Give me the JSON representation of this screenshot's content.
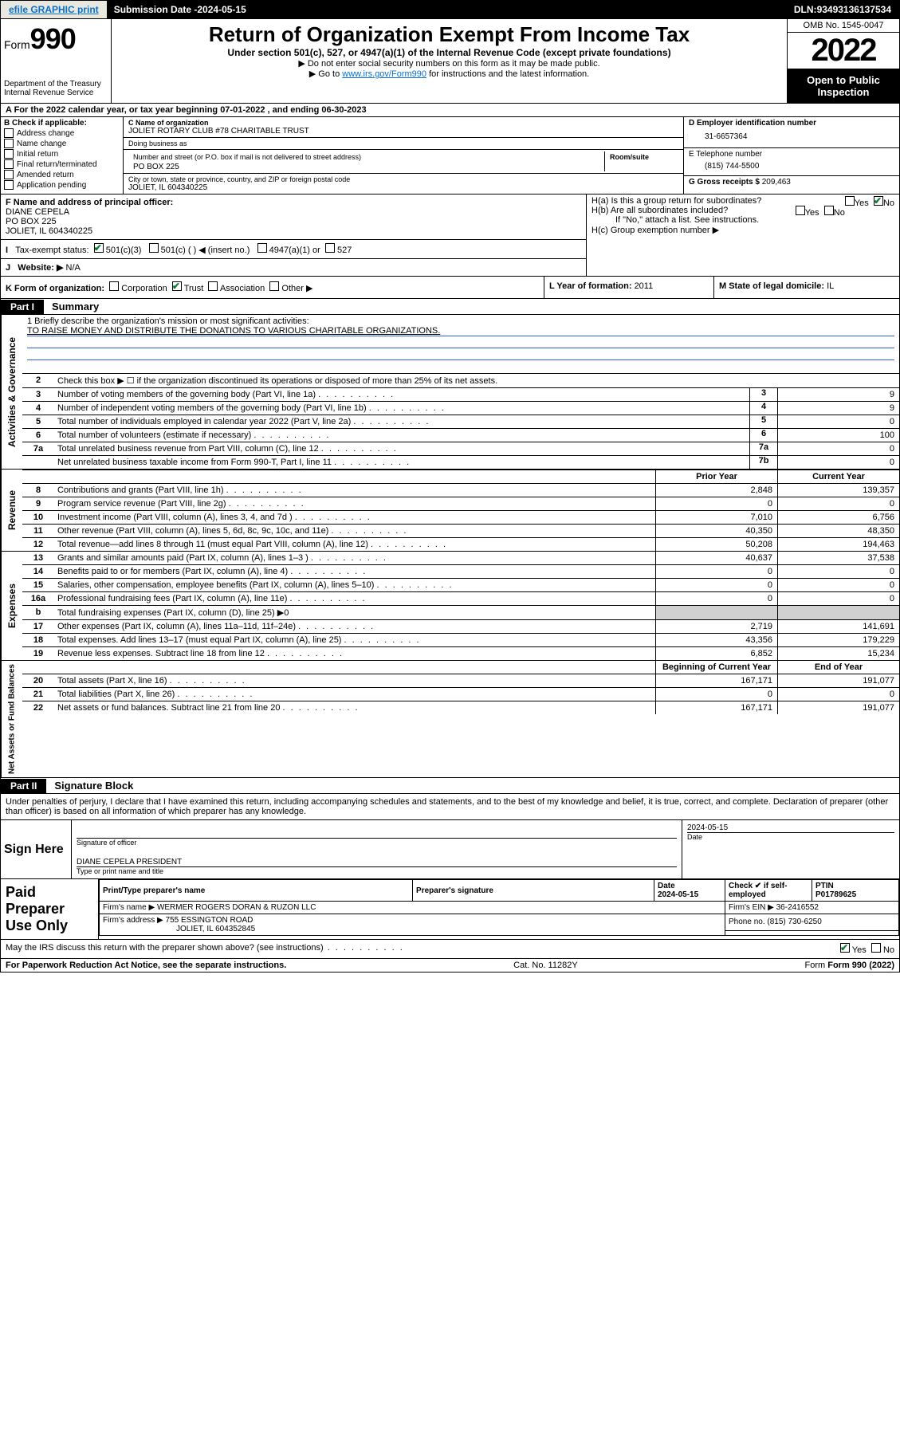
{
  "topbar": {
    "efile_link": "efile GRAPHIC print",
    "submission_label": "Submission Date - ",
    "submission_date": "2024-05-15",
    "dln_label": "DLN: ",
    "dln": "93493136137534"
  },
  "header": {
    "form_label": "Form",
    "form_number": "990",
    "dept": "Department of the Treasury\nInternal Revenue Service",
    "title": "Return of Organization Exempt From Income Tax",
    "subtitle": "Under section 501(c), 527, or 4947(a)(1) of the Internal Revenue Code (except private foundations)",
    "note1": "▶ Do not enter social security numbers on this form as it may be made public.",
    "note2_pre": "▶ Go to ",
    "note2_link": "www.irs.gov/Form990",
    "note2_post": " for instructions and the latest information.",
    "omb": "OMB No. 1545-0047",
    "year": "2022",
    "open": "Open to Public Inspection"
  },
  "rowA": "A For the 2022 calendar year, or tax year beginning 07-01-2022   , and ending 06-30-2023",
  "colB": {
    "header": "B Check if applicable:",
    "items": [
      "Address change",
      "Name change",
      "Initial return",
      "Final return/terminated",
      "Amended return",
      "Application pending"
    ]
  },
  "colC": {
    "name_label": "C Name of organization",
    "name": "JOLIET ROTARY CLUB #78 CHARITABLE TRUST",
    "dba_label": "Doing business as",
    "dba": "",
    "street_label": "Number and street (or P.O. box if mail is not delivered to street address)",
    "room_label": "Room/suite",
    "street": "PO BOX 225",
    "city_label": "City or town, state or province, country, and ZIP or foreign postal code",
    "city": "JOLIET, IL  604340225"
  },
  "colDE": {
    "d_label": "D Employer identification number",
    "ein": "31-6657364",
    "e_label": "E Telephone number",
    "phone": "(815) 744-5500",
    "g_label": "G Gross receipts $ ",
    "gross": "209,463"
  },
  "rowF": {
    "label": "F Name and address of principal officer:",
    "name": "DIANE CEPELA",
    "street": "PO BOX 225",
    "city": "JOLIET, IL  604340225"
  },
  "rowH": {
    "ha": "H(a)  Is this a group return for subordinates?",
    "hb": "H(b)  Are all subordinates included?",
    "hb_note": "If \"No,\" attach a list. See instructions.",
    "hc": "H(c)  Group exemption number ▶",
    "yes": "Yes",
    "no": "No"
  },
  "rowI": {
    "label": "Tax-exempt status:",
    "c3": "501(c)(3)",
    "c": "501(c) (  ) ◀ (insert no.)",
    "a1": "4947(a)(1) or",
    "s527": "527"
  },
  "rowJ": {
    "label": "Website: ▶",
    "value": "N/A"
  },
  "rowK": {
    "label": "K Form of organization:",
    "corp": "Corporation",
    "trust": "Trust",
    "assoc": "Association",
    "other": "Other ▶"
  },
  "rowL": {
    "label": "L Year of formation: ",
    "val": "2011"
  },
  "rowM": {
    "label": "M State of legal domicile: ",
    "val": "IL"
  },
  "part1": {
    "tab": "Part I",
    "title": "Summary"
  },
  "sideLabels": {
    "ag": "Activities & Governance",
    "rev": "Revenue",
    "exp": "Expenses",
    "net": "Net Assets or Fund Balances"
  },
  "mission": {
    "q": "1   Briefly describe the organization's mission or most significant activities:",
    "text": "TO RAISE MONEY AND DISTRIBUTE THE DONATIONS TO VARIOUS CHARITABLE ORGANIZATIONS."
  },
  "line2": "Check this box ▶ ☐  if the organization discontinued its operations or disposed of more than 25% of its net assets.",
  "govlines": [
    {
      "n": "3",
      "d": "Number of voting members of the governing body (Part VI, line 1a)",
      "b": "3",
      "v": "9"
    },
    {
      "n": "4",
      "d": "Number of independent voting members of the governing body (Part VI, line 1b)",
      "b": "4",
      "v": "9"
    },
    {
      "n": "5",
      "d": "Total number of individuals employed in calendar year 2022 (Part V, line 2a)",
      "b": "5",
      "v": "0"
    },
    {
      "n": "6",
      "d": "Total number of volunteers (estimate if necessary)",
      "b": "6",
      "v": "100"
    },
    {
      "n": "7a",
      "d": "Total unrelated business revenue from Part VIII, column (C), line 12",
      "b": "7a",
      "v": "0"
    },
    {
      "n": "",
      "d": "Net unrelated business taxable income from Form 990-T, Part I, line 11",
      "b": "7b",
      "v": "0"
    }
  ],
  "colhdrs": {
    "prior": "Prior Year",
    "current": "Current Year",
    "begin": "Beginning of Current Year",
    "end": "End of Year"
  },
  "revlines": [
    {
      "n": "8",
      "d": "Contributions and grants (Part VIII, line 1h)",
      "p": "2,848",
      "c": "139,357"
    },
    {
      "n": "9",
      "d": "Program service revenue (Part VIII, line 2g)",
      "p": "0",
      "c": "0"
    },
    {
      "n": "10",
      "d": "Investment income (Part VIII, column (A), lines 3, 4, and 7d )",
      "p": "7,010",
      "c": "6,756"
    },
    {
      "n": "11",
      "d": "Other revenue (Part VIII, column (A), lines 5, 6d, 8c, 9c, 10c, and 11e)",
      "p": "40,350",
      "c": "48,350"
    },
    {
      "n": "12",
      "d": "Total revenue—add lines 8 through 11 (must equal Part VIII, column (A), line 12)",
      "p": "50,208",
      "c": "194,463"
    }
  ],
  "explines": [
    {
      "n": "13",
      "d": "Grants and similar amounts paid (Part IX, column (A), lines 1–3 )",
      "p": "40,637",
      "c": "37,538"
    },
    {
      "n": "14",
      "d": "Benefits paid to or for members (Part IX, column (A), line 4)",
      "p": "0",
      "c": "0"
    },
    {
      "n": "15",
      "d": "Salaries, other compensation, employee benefits (Part IX, column (A), lines 5–10)",
      "p": "0",
      "c": "0"
    },
    {
      "n": "16a",
      "d": "Professional fundraising fees (Part IX, column (A), line 11e)",
      "p": "0",
      "c": "0"
    },
    {
      "n": "b",
      "d": "Total fundraising expenses (Part IX, column (D), line 25) ▶0",
      "p": "",
      "c": "",
      "grey": true
    },
    {
      "n": "17",
      "d": "Other expenses (Part IX, column (A), lines 11a–11d, 11f–24e)",
      "p": "2,719",
      "c": "141,691"
    },
    {
      "n": "18",
      "d": "Total expenses. Add lines 13–17 (must equal Part IX, column (A), line 25)",
      "p": "43,356",
      "c": "179,229"
    },
    {
      "n": "19",
      "d": "Revenue less expenses. Subtract line 18 from line 12",
      "p": "6,852",
      "c": "15,234"
    }
  ],
  "netlines": [
    {
      "n": "20",
      "d": "Total assets (Part X, line 16)",
      "p": "167,171",
      "c": "191,077"
    },
    {
      "n": "21",
      "d": "Total liabilities (Part X, line 26)",
      "p": "0",
      "c": "0"
    },
    {
      "n": "22",
      "d": "Net assets or fund balances. Subtract line 21 from line 20",
      "p": "167,171",
      "c": "191,077"
    }
  ],
  "part2": {
    "tab": "Part II",
    "title": "Signature Block"
  },
  "sigtext": "Under penalties of perjury, I declare that I have examined this return, including accompanying schedules and statements, and to the best of my knowledge and belief, it is true, correct, and complete. Declaration of preparer (other than officer) is based on all information of which preparer has any knowledge.",
  "sign": {
    "here": "Sign Here",
    "sigline": "Signature of officer",
    "datel": "Date",
    "date": "2024-05-15",
    "name": "DIANE CEPELA  PRESIDENT",
    "typel": "Type or print name and title"
  },
  "prep": {
    "label": "Paid Preparer Use Only",
    "h1": "Print/Type preparer's name",
    "h2": "Preparer's signature",
    "h3": "Date",
    "h3v": "2024-05-15",
    "h4": "Check ✔ if self-employed",
    "h5": "PTIN",
    "ptin": "P01789625",
    "firmname_l": "Firm's name    ▶ ",
    "firmname": "WERMER ROGERS DORAN & RUZON LLC",
    "ein_l": "Firm's EIN ▶ ",
    "ein": "36-2416552",
    "addr_l": "Firm's address ▶ ",
    "addr1": "755 ESSINGTON ROAD",
    "addr2": "JOLIET, IL  604352845",
    "phone_l": "Phone no. ",
    "phone": "(815) 730-6250"
  },
  "mayirs": {
    "q": "May the IRS discuss this return with the preparer shown above? (see instructions)",
    "yes": "Yes",
    "no": "No"
  },
  "footer": {
    "left": "For Paperwork Reduction Act Notice, see the separate instructions.",
    "mid": "Cat. No. 11282Y",
    "right": "Form 990 (2022)"
  },
  "colors": {
    "link": "#0b6fc7",
    "check": "#0b7a2f",
    "ruleblue": "#2a5fcf"
  }
}
